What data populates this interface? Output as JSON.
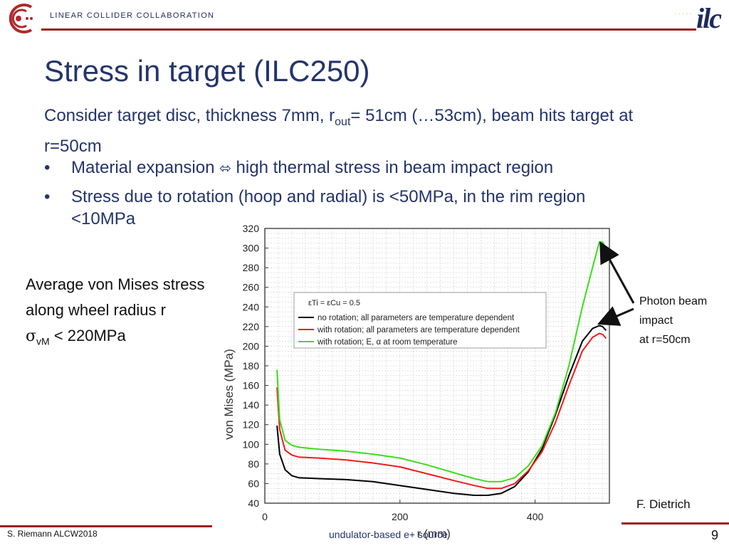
{
  "header": {
    "org_name": "LINEAR COLLIDER COLLABORATION",
    "brand_color": "#9b1c1c",
    "logo_icon": "lcc-logo-icon",
    "ilc_logo": "ilc"
  },
  "slide": {
    "title": "Stress in target (ILC250)",
    "intro_pre": "Consider target disc, thickness 7mm, r",
    "intro_sub": "out",
    "intro_post": "= 51cm (…53cm), beam hits target at r=50cm",
    "bullets": [
      {
        "pre": "Material  expansion  ",
        "arrow": "⬄",
        "post": "  high thermal stress in beam impact region"
      },
      {
        "line1": "Stress due to rotation (hoop and radial)  is <50MPa, in the rim region",
        "line2": "<10MPa"
      }
    ],
    "avg_line1": "Average von Mises stress",
    "avg_line2": "along wheel radius r",
    "sigma": "σ",
    "sigma_sub": "vM",
    "sigma_post": " < 220MPa",
    "photon_line1": "Photon beam",
    "photon_line2": "impact",
    "photon_line3": "at r=50cm",
    "credit": "F. Dietrich"
  },
  "footer": {
    "author": "S. Riemann ALCW2018",
    "subject": "undulator-based e+ source",
    "page": "9"
  },
  "chart_data": {
    "type": "line",
    "xlabel": "r (mm)",
    "ylabel": "von Mises (MPa)",
    "xlim": [
      0,
      510
    ],
    "ylim": [
      40,
      320
    ],
    "xticks": [
      0,
      200,
      400
    ],
    "yticks": [
      40,
      60,
      80,
      100,
      120,
      140,
      160,
      180,
      200,
      220,
      240,
      260,
      280,
      300,
      320
    ],
    "grid": true,
    "legend_placement": "upper-center",
    "legend_title": "εTi = εCu = 0.5",
    "series": [
      {
        "name": "no rotation; all parameters are temperature dependent",
        "color": "#000000",
        "x": [
          18,
          22,
          30,
          40,
          50,
          80,
          120,
          160,
          200,
          240,
          280,
          310,
          330,
          350,
          370,
          390,
          410,
          430,
          450,
          470,
          485,
          495,
          500,
          505
        ],
        "y": [
          119,
          90,
          74,
          68,
          66,
          65,
          64,
          62,
          58,
          54,
          50,
          48,
          48,
          50,
          57,
          72,
          95,
          130,
          170,
          205,
          218,
          221,
          220,
          216
        ]
      },
      {
        "name": "with rotation; all parameters are temperature dependent",
        "color": "#ee1c1c",
        "x": [
          18,
          22,
          30,
          40,
          50,
          80,
          120,
          160,
          200,
          240,
          280,
          310,
          330,
          350,
          370,
          390,
          410,
          430,
          450,
          470,
          485,
          495,
          500,
          505
        ],
        "y": [
          158,
          115,
          94,
          89,
          87,
          86,
          84,
          81,
          77,
          70,
          63,
          58,
          55,
          55,
          60,
          73,
          92,
          122,
          160,
          195,
          209,
          213,
          212,
          208
        ]
      },
      {
        "name": "with rotation; E, α at room temperature",
        "color": "#3ddc1c",
        "x": [
          18,
          22,
          30,
          40,
          50,
          80,
          120,
          160,
          200,
          240,
          280,
          310,
          330,
          350,
          370,
          390,
          410,
          430,
          450,
          470,
          485,
          495,
          500,
          505
        ],
        "y": [
          176,
          125,
          104,
          99,
          97,
          95,
          93,
          90,
          86,
          79,
          71,
          65,
          62,
          62,
          66,
          78,
          98,
          132,
          180,
          240,
          280,
          306,
          306,
          300
        ]
      }
    ]
  }
}
